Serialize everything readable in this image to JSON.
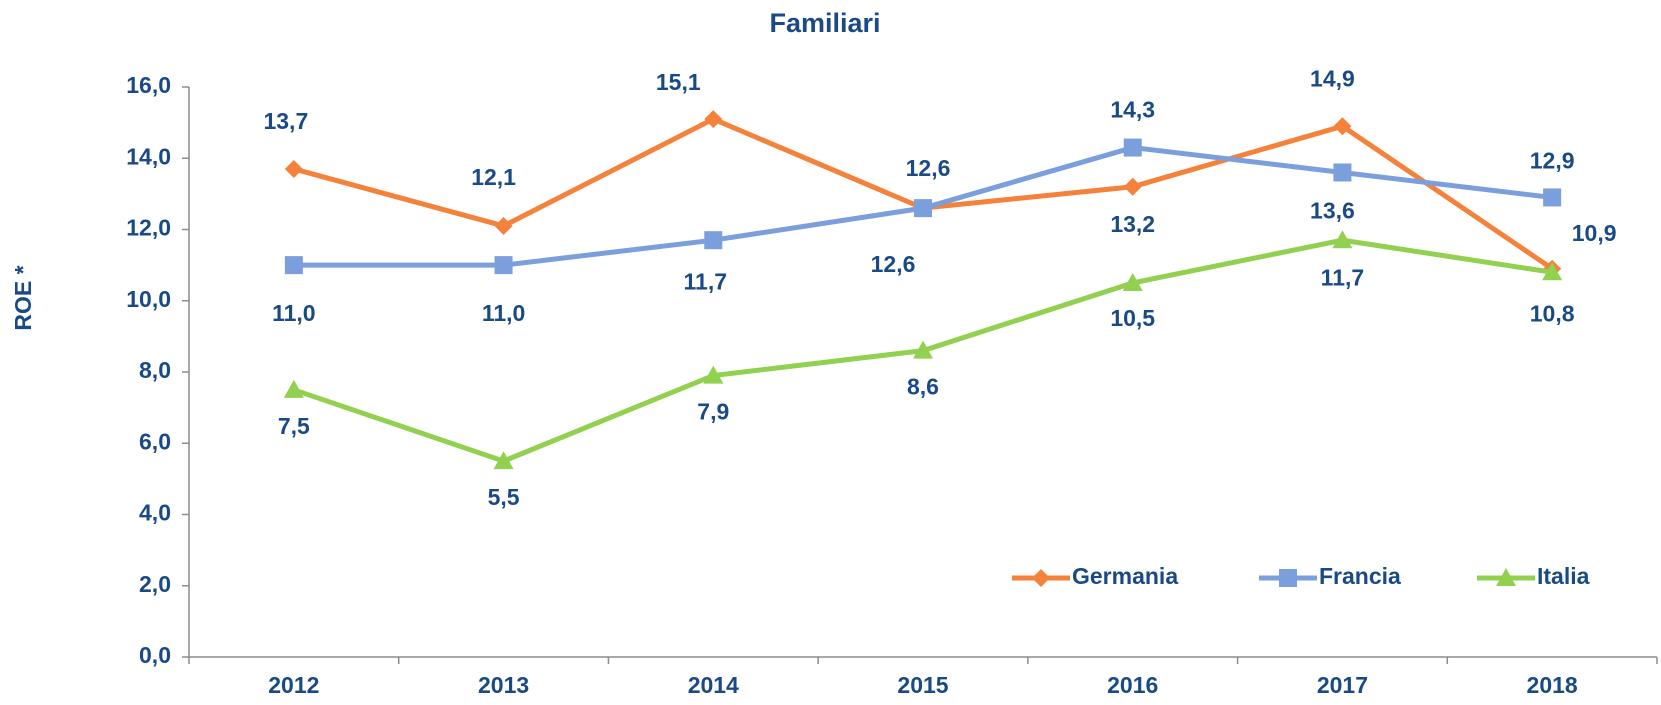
{
  "chart_data": {
    "type": "line",
    "title": "Familiari",
    "y_label": "ROE *",
    "categories": [
      "2012",
      "2013",
      "2014",
      "2015",
      "2016",
      "2017",
      "2018"
    ],
    "series": [
      {
        "name": "Germania",
        "color": "#f5823a",
        "marker": "diamond",
        "values": [
          13.7,
          12.1,
          15.1,
          12.6,
          13.2,
          14.9,
          10.9
        ],
        "value_labels": [
          "13,7",
          "12,1",
          "15,1",
          "12,6",
          "13,2",
          "14,9",
          "10,9"
        ]
      },
      {
        "name": "Francia",
        "color": "#7b9fdc",
        "marker": "square",
        "values": [
          11.0,
          11.0,
          11.7,
          12.6,
          14.3,
          13.6,
          12.9
        ],
        "value_labels": [
          "11,0",
          "11,0",
          "11,7",
          "12,6",
          "14,3",
          "13,6",
          "12,9"
        ]
      },
      {
        "name": "Italia",
        "color": "#92d050",
        "marker": "triangle",
        "values": [
          7.5,
          5.5,
          7.9,
          8.6,
          10.5,
          11.7,
          10.8
        ],
        "value_labels": [
          "7,5",
          "5,5",
          "7,9",
          "8,6",
          "10,5",
          "11,7",
          "10,8"
        ]
      }
    ],
    "ylim": [
      0,
      16
    ],
    "yticks": [
      {
        "value": 0,
        "label": "0,0"
      },
      {
        "value": 2,
        "label": "2,0"
      },
      {
        "value": 4,
        "label": "4,0"
      },
      {
        "value": 6,
        "label": "6,0"
      },
      {
        "value": 8,
        "label": "8,0"
      },
      {
        "value": 10,
        "label": "10,0"
      },
      {
        "value": 12,
        "label": "12,0"
      },
      {
        "value": 14,
        "label": "14,0"
      },
      {
        "value": 16,
        "label": "16,0"
      }
    ],
    "grid": false,
    "legend": "bottom-right"
  }
}
